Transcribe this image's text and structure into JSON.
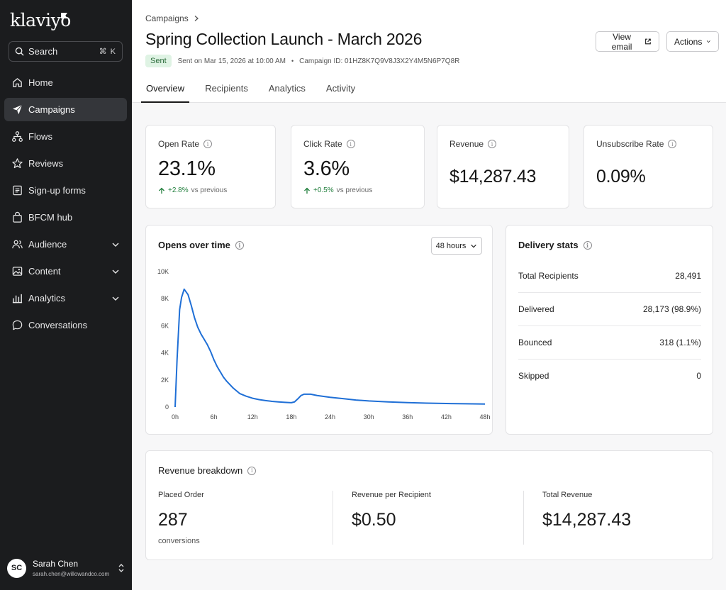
{
  "app": {
    "logo": "klaviyo"
  },
  "search": {
    "label": "Search",
    "shortcut": "⌘ K"
  },
  "sidebar": {
    "items": [
      {
        "label": "Home",
        "icon": "home-icon"
      },
      {
        "label": "Campaigns",
        "icon": "send-icon",
        "active": true
      },
      {
        "label": "Flows",
        "icon": "flows-icon"
      },
      {
        "label": "Reviews",
        "icon": "star-icon"
      },
      {
        "label": "Sign-up forms",
        "icon": "form-icon"
      },
      {
        "label": "BFCM hub",
        "icon": "bag-icon"
      },
      {
        "label": "Audience",
        "icon": "users-icon",
        "expandable": true
      },
      {
        "label": "Content",
        "icon": "image-icon",
        "expandable": true
      },
      {
        "label": "Analytics",
        "icon": "bar-chart-icon",
        "expandable": true
      },
      {
        "label": "Conversations",
        "icon": "chat-icon"
      }
    ]
  },
  "user": {
    "initials": "SC",
    "name": "Sarah Chen",
    "email": "sarah.chen@willowandco.com"
  },
  "header": {
    "breadcrumb": "Campaigns",
    "title": "Spring Collection Launch - March 2026",
    "status": "Sent",
    "sent_on": "Sent on Mar 15, 2026 at 10:00 AM",
    "separator": "•",
    "campaign_id": "Campaign ID: 01HZ8K7Q9V8J3X2Y4M5N6P7Q8R",
    "view_email": "View email",
    "actions": "Actions"
  },
  "tabs": [
    {
      "label": "Overview",
      "active": true
    },
    {
      "label": "Recipients"
    },
    {
      "label": "Analytics"
    },
    {
      "label": "Activity"
    }
  ],
  "metrics": [
    {
      "label": "Open Rate",
      "value": "23.1%",
      "delta": "+2.8%",
      "delta_suffix": "vs previous"
    },
    {
      "label": "Click Rate",
      "value": "3.6%",
      "delta": "+0.5%",
      "delta_suffix": "vs previous"
    },
    {
      "label": "Revenue",
      "value": "$14,287.43"
    },
    {
      "label": "Unsubscribe Rate",
      "value": "0.09%"
    }
  ],
  "opens_chart": {
    "title": "Opens over time",
    "range_select": "48 hours"
  },
  "chart_data": {
    "type": "line",
    "title": "Opens over time",
    "xlabel": "",
    "ylabel": "",
    "x": [
      0,
      0.3,
      0.7,
      1,
      1.4,
      2,
      2.5,
      3,
      3.5,
      4,
      4.5,
      5,
      5.5,
      6,
      6.5,
      7,
      7.5,
      8,
      9,
      10,
      11,
      12,
      13,
      14,
      15,
      16,
      17,
      18,
      18.5,
      19,
      19.5,
      20,
      21,
      22,
      24,
      26,
      28,
      30,
      33,
      36,
      39,
      42,
      45,
      48
    ],
    "series": [
      {
        "values": [
          0,
          3500,
          7200,
          8100,
          8700,
          8300,
          7500,
          6600,
          5900,
          5400,
          5000,
          4600,
          4100,
          3500,
          3000,
          2600,
          2200,
          1900,
          1400,
          1000,
          800,
          650,
          550,
          480,
          420,
          380,
          350,
          320,
          380,
          600,
          850,
          950,
          950,
          850,
          720,
          620,
          520,
          450,
          380,
          330,
          290,
          260,
          240,
          220
        ]
      }
    ],
    "xticks": [
      "0h",
      "6h",
      "12h",
      "18h",
      "24h",
      "30h",
      "36h",
      "42h",
      "48h"
    ],
    "yticks": [
      "0",
      "2K",
      "4K",
      "6K",
      "8K",
      "10K"
    ],
    "xlim": [
      0,
      48
    ],
    "ylim": [
      0,
      10000
    ],
    "color": "#1f6fd6",
    "grid": false
  },
  "delivery": {
    "title": "Delivery stats",
    "rows": [
      {
        "label": "Total Recipients",
        "value": "28,491"
      },
      {
        "label": "Delivered",
        "value": "28,173 (98.9%)"
      },
      {
        "label": "Bounced",
        "value": "318 (1.1%)"
      },
      {
        "label": "Skipped",
        "value": "0"
      }
    ]
  },
  "revenue_breakdown": {
    "title": "Revenue breakdown",
    "columns": [
      {
        "label": "Placed Order",
        "value": "287",
        "sub": "conversions"
      },
      {
        "label": "Revenue per Recipient",
        "value": "$0.50"
      },
      {
        "label": "Total Revenue",
        "value": "$14,287.43"
      }
    ]
  }
}
